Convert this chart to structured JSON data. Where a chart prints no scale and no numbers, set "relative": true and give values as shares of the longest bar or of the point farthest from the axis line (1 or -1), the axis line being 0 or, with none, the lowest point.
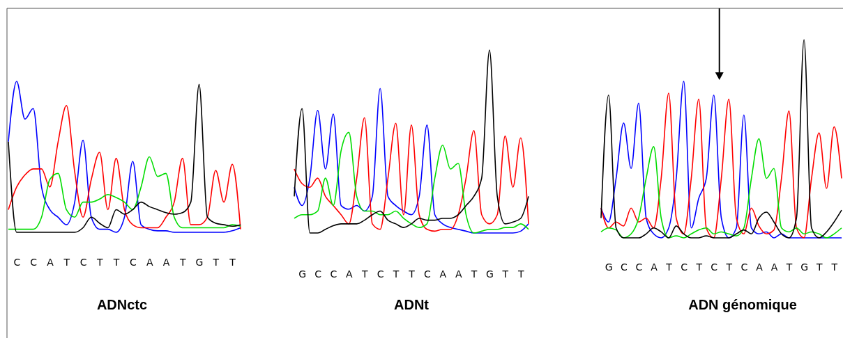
{
  "chart_data": [
    {
      "type": "line",
      "title": "ADNctc",
      "relative": true,
      "categories": [
        null,
        "C",
        null,
        "C",
        null,
        "A",
        null,
        "T",
        null,
        "C",
        null,
        "T",
        null,
        "T",
        null,
        "C",
        null,
        "A",
        null,
        "A",
        null,
        "T",
        null,
        "G",
        null,
        "T",
        null,
        "T",
        null
      ],
      "series": [
        {
          "color": "#0000ff",
          "values": [
            0.6,
            1.0,
            0.75,
            0.82,
            0.3,
            0.15,
            0.1,
            0.05,
            0.2,
            0.61,
            0.1,
            0.02,
            0.02,
            0.0,
            0.1,
            0.47,
            0.05,
            0.02,
            0.01,
            0.01,
            0,
            0,
            0,
            0,
            0,
            0,
            0,
            0.01,
            0.03
          ]
        },
        {
          "color": "#ff0000",
          "values": [
            0.15,
            0.3,
            0.38,
            0.42,
            0.42,
            0.3,
            0.6,
            0.84,
            0.4,
            0.1,
            0.35,
            0.53,
            0.15,
            0.49,
            0.15,
            0.05,
            0.03,
            0.03,
            0.03,
            0.1,
            0.2,
            0.49,
            0.05,
            0.05,
            0.1,
            0.41,
            0.2,
            0.45,
            0.02
          ]
        },
        {
          "color": "#00dd00",
          "values": [
            0.02,
            0.02,
            0.02,
            0.02,
            0.1,
            0.35,
            0.39,
            0.15,
            0.1,
            0.2,
            0.2,
            0.22,
            0.25,
            0.23,
            0.2,
            0.15,
            0.3,
            0.5,
            0.37,
            0.39,
            0.1,
            0.03,
            0.03,
            0.03,
            0.03,
            0.03,
            0.03,
            0.05,
            0.04
          ]
        },
        {
          "color": "#000000",
          "values": [
            0.6,
            0,
            0,
            0,
            0,
            0,
            0,
            0,
            0,
            0.03,
            0.1,
            0.06,
            0.03,
            0.15,
            0.12,
            0.15,
            0.2,
            0.17,
            0.15,
            0.13,
            0.12,
            0.13,
            0.2,
            0.98,
            0.1,
            0.06,
            0.05,
            0.04,
            0.05
          ]
        }
      ]
    },
    {
      "type": "line",
      "title": "ADNt",
      "relative": true,
      "categories": [
        null,
        "G",
        null,
        "C",
        null,
        "C",
        null,
        "A",
        null,
        "T",
        null,
        "C",
        null,
        "T",
        null,
        "T",
        null,
        "C",
        null,
        "A",
        null,
        "A",
        null,
        "T",
        null,
        "G",
        null,
        "T",
        null,
        "T",
        null
      ],
      "series": [
        {
          "color": "#0000ff",
          "values": [
            0.25,
            0.15,
            0.3,
            0.67,
            0.35,
            0.65,
            0.15,
            0.13,
            0.15,
            0.12,
            0.2,
            0.79,
            0.2,
            0.15,
            0.12,
            0.1,
            0.2,
            0.59,
            0.1,
            0.05,
            0.03,
            0.02,
            0.01,
            0,
            0,
            0,
            0,
            0,
            0,
            0.01,
            0.05
          ]
        },
        {
          "color": "#ff0000",
          "values": [
            0.35,
            0.27,
            0.25,
            0.3,
            0.2,
            0.15,
            0.1,
            0.05,
            0.3,
            0.63,
            0.05,
            0.02,
            0.3,
            0.6,
            0.1,
            0.59,
            0.1,
            0.02,
            0.01,
            0.02,
            0.02,
            0.1,
            0.3,
            0.56,
            0.1,
            0.05,
            0.1,
            0.53,
            0.25,
            0.52,
            0.05
          ]
        },
        {
          "color": "#00dd00",
          "values": [
            0.08,
            0.1,
            0.1,
            0.12,
            0.3,
            0.15,
            0.45,
            0.55,
            0.2,
            0.12,
            0.12,
            0.1,
            0.1,
            0.12,
            0.08,
            0.05,
            0.03,
            0.05,
            0.3,
            0.48,
            0.35,
            0.38,
            0.1,
            0,
            0.01,
            0.02,
            0.02,
            0.03,
            0.03,
            0.05,
            0.02
          ]
        },
        {
          "color": "#000000",
          "values": [
            0.2,
            0.68,
            0,
            0,
            0.02,
            0.04,
            0.05,
            0.05,
            0.05,
            0.07,
            0.1,
            0.12,
            0.07,
            0.05,
            0.03,
            0.05,
            0.08,
            0.07,
            0.07,
            0.08,
            0.08,
            0.1,
            0.15,
            0.2,
            0.3,
            1.0,
            0.2,
            0.05,
            0.06,
            0.08,
            0.2
          ]
        }
      ]
    },
    {
      "type": "line",
      "title": "ADN génomique",
      "relative": true,
      "categories": [
        null,
        "G",
        null,
        "C",
        null,
        "C",
        null,
        "A",
        null,
        "T",
        null,
        "C",
        null,
        "T",
        null,
        "C",
        null,
        "T",
        null,
        "C",
        null,
        "A",
        null,
        "A",
        null,
        "T",
        null,
        "G",
        null,
        "T",
        null,
        "T",
        null
      ],
      "series": [
        {
          "color": "#0000ff",
          "values": [
            0.15,
            0.08,
            0.3,
            0.58,
            0.35,
            0.68,
            0.1,
            0.02,
            0,
            0.05,
            0.3,
            0.79,
            0.05,
            0.2,
            0.3,
            0.72,
            0.1,
            0,
            0.05,
            0.62,
            0.05,
            0.02,
            0.03,
            0,
            0.02,
            0,
            0,
            0,
            0,
            0,
            0,
            0,
            0
          ]
        },
        {
          "color": "#ff0000",
          "values": [
            0.15,
            0.05,
            0.08,
            0.06,
            0.15,
            0.08,
            0.1,
            0.05,
            0.3,
            0.73,
            0.1,
            0.02,
            0.3,
            0.7,
            0.05,
            0,
            0.3,
            0.7,
            0.1,
            0.02,
            0.15,
            0.06,
            0.02,
            0.04,
            0.3,
            0.64,
            0.05,
            0,
            0.3,
            0.53,
            0.25,
            0.56,
            0.3
          ]
        },
        {
          "color": "#00dd00",
          "values": [
            0.03,
            0.05,
            0.04,
            0,
            0.02,
            0.1,
            0.3,
            0.46,
            0.1,
            0,
            0.01,
            0,
            0.02,
            0.04,
            0.05,
            0.02,
            0.03,
            0.02,
            0.01,
            0.05,
            0.3,
            0.5,
            0.3,
            0.35,
            0.05,
            0.03,
            0.05,
            0.02,
            0.03,
            0.02,
            0,
            0.02,
            0.05
          ]
        },
        {
          "color": "#000000",
          "values": [
            0.1,
            0.72,
            0.05,
            0,
            0,
            0,
            0.02,
            0.05,
            0.03,
            0,
            0.06,
            0.02,
            0,
            0,
            0.01,
            0,
            0,
            0,
            0.02,
            0.04,
            0.02,
            0.1,
            0.13,
            0.08,
            0.02,
            0,
            0.1,
            1.0,
            0.05,
            0,
            0.03,
            0.08,
            0.14
          ]
        }
      ]
    }
  ]
}
